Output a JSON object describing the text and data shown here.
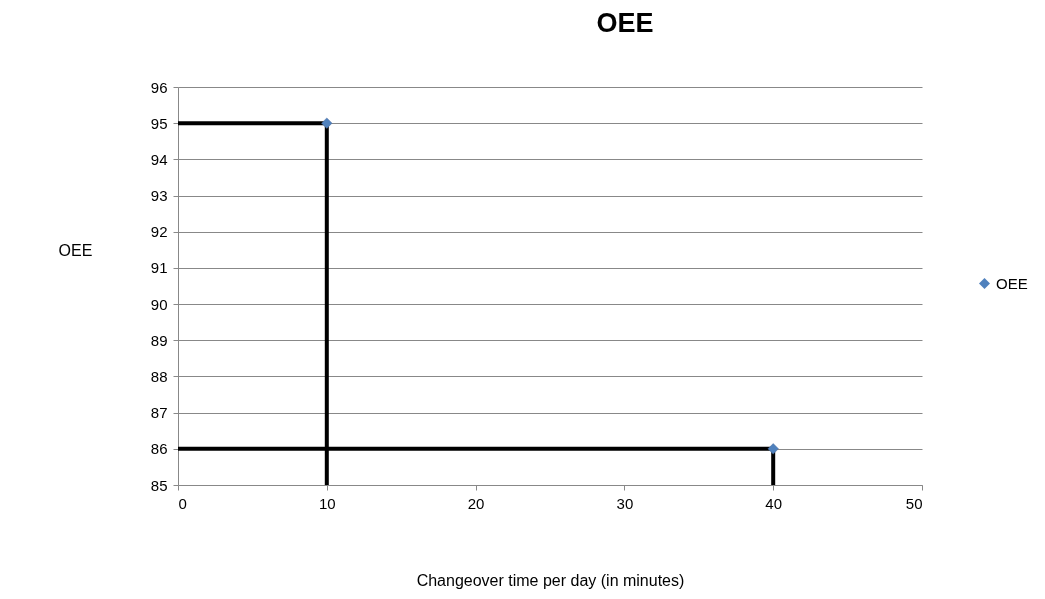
{
  "chart_data": {
    "type": "scatter",
    "title": "OEE",
    "xlabel": "Changeover time per day (in minutes)",
    "ylabel": "OEE",
    "xlim": [
      0,
      50
    ],
    "xticks": [
      0,
      10,
      20,
      30,
      40,
      50
    ],
    "ylim": [
      85,
      96
    ],
    "yticks": [
      85,
      86,
      87,
      88,
      89,
      90,
      91,
      92,
      93,
      94,
      95,
      96
    ],
    "grid": "y",
    "legend": "right",
    "series": [
      {
        "name": "OEE",
        "color": "#4f81bd",
        "marker": "diamond",
        "x": [
          10,
          40
        ],
        "values": [
          95,
          86
        ]
      },
      {
        "type": "line",
        "color": "#000000",
        "marker": "none",
        "x": [
          0,
          10,
          10
        ],
        "values": [
          95,
          95,
          85
        ]
      },
      {
        "type": "line",
        "color": "#000000",
        "marker": "none",
        "x": [
          0,
          40,
          40
        ],
        "values": [
          86,
          86,
          85
        ]
      }
    ]
  }
}
